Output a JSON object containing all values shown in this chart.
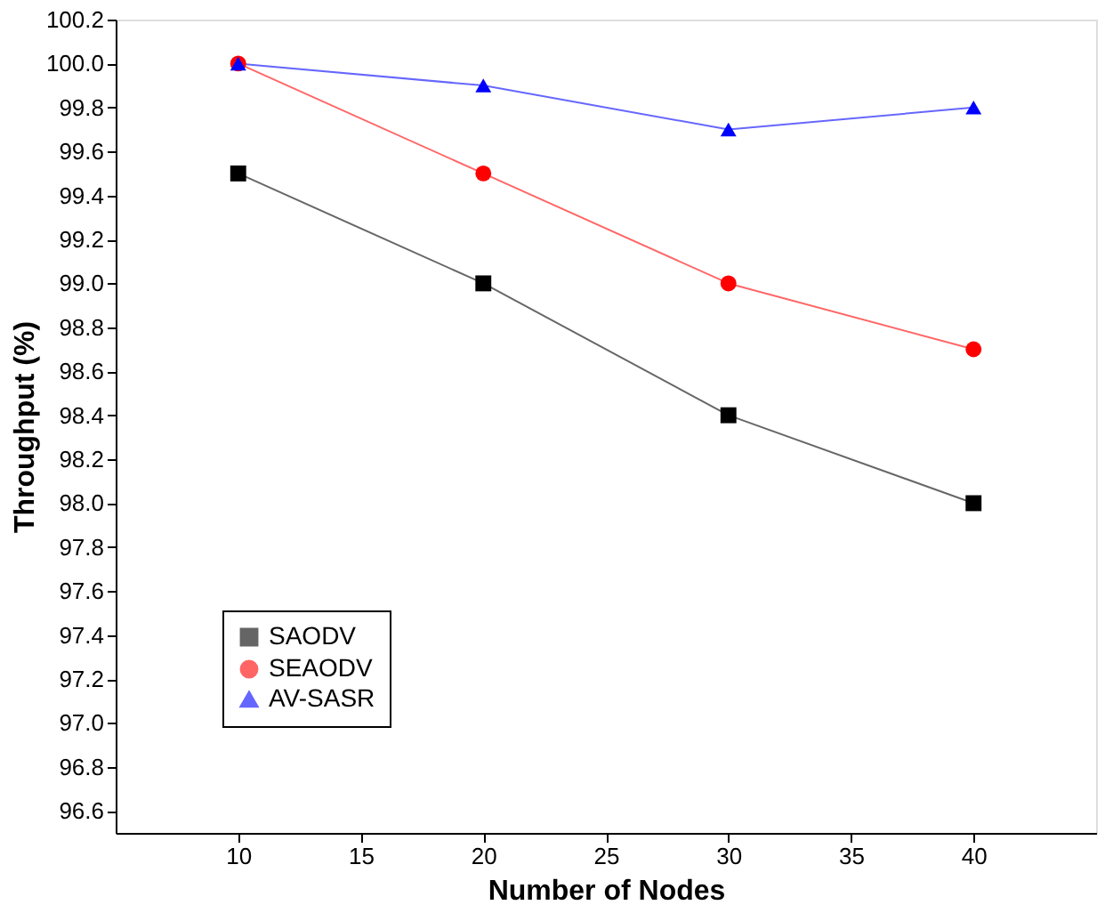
{
  "chart_data": {
    "type": "line",
    "xlabel": "Number of Nodes",
    "ylabel": "Throughput (%)",
    "x": [
      10,
      20,
      30,
      40
    ],
    "series": [
      {
        "name": "SAODV",
        "color": "#000000",
        "marker": "square",
        "values": [
          99.5,
          99.0,
          98.4,
          98.0
        ]
      },
      {
        "name": "SEAODV",
        "color": "#ff0000",
        "marker": "circle",
        "values": [
          100.0,
          99.5,
          99.0,
          98.7
        ]
      },
      {
        "name": "AV-SASR",
        "color": "#0000ff",
        "marker": "triangle",
        "values": [
          100.0,
          99.9,
          99.7,
          99.8
        ]
      }
    ],
    "xlim": [
      5,
      45
    ],
    "xticks": [
      10,
      15,
      20,
      25,
      30,
      35,
      40
    ],
    "ylim": [
      96.5,
      100.2
    ],
    "yticks": [
      96.6,
      96.8,
      {
        "value": 97,
        "label": "97.0"
      },
      97.2,
      97.4,
      97.6,
      97.8,
      {
        "value": 98,
        "label": "98.0"
      },
      98.2,
      98.4,
      98.6,
      98.8,
      {
        "value": 99,
        "label": "99.0"
      },
      99.2,
      99.4,
      99.6,
      99.8,
      {
        "value": 100,
        "label": "100.0"
      },
      100.2
    ],
    "grid": false,
    "legend": "bottom left",
    "line_style": "solid"
  }
}
